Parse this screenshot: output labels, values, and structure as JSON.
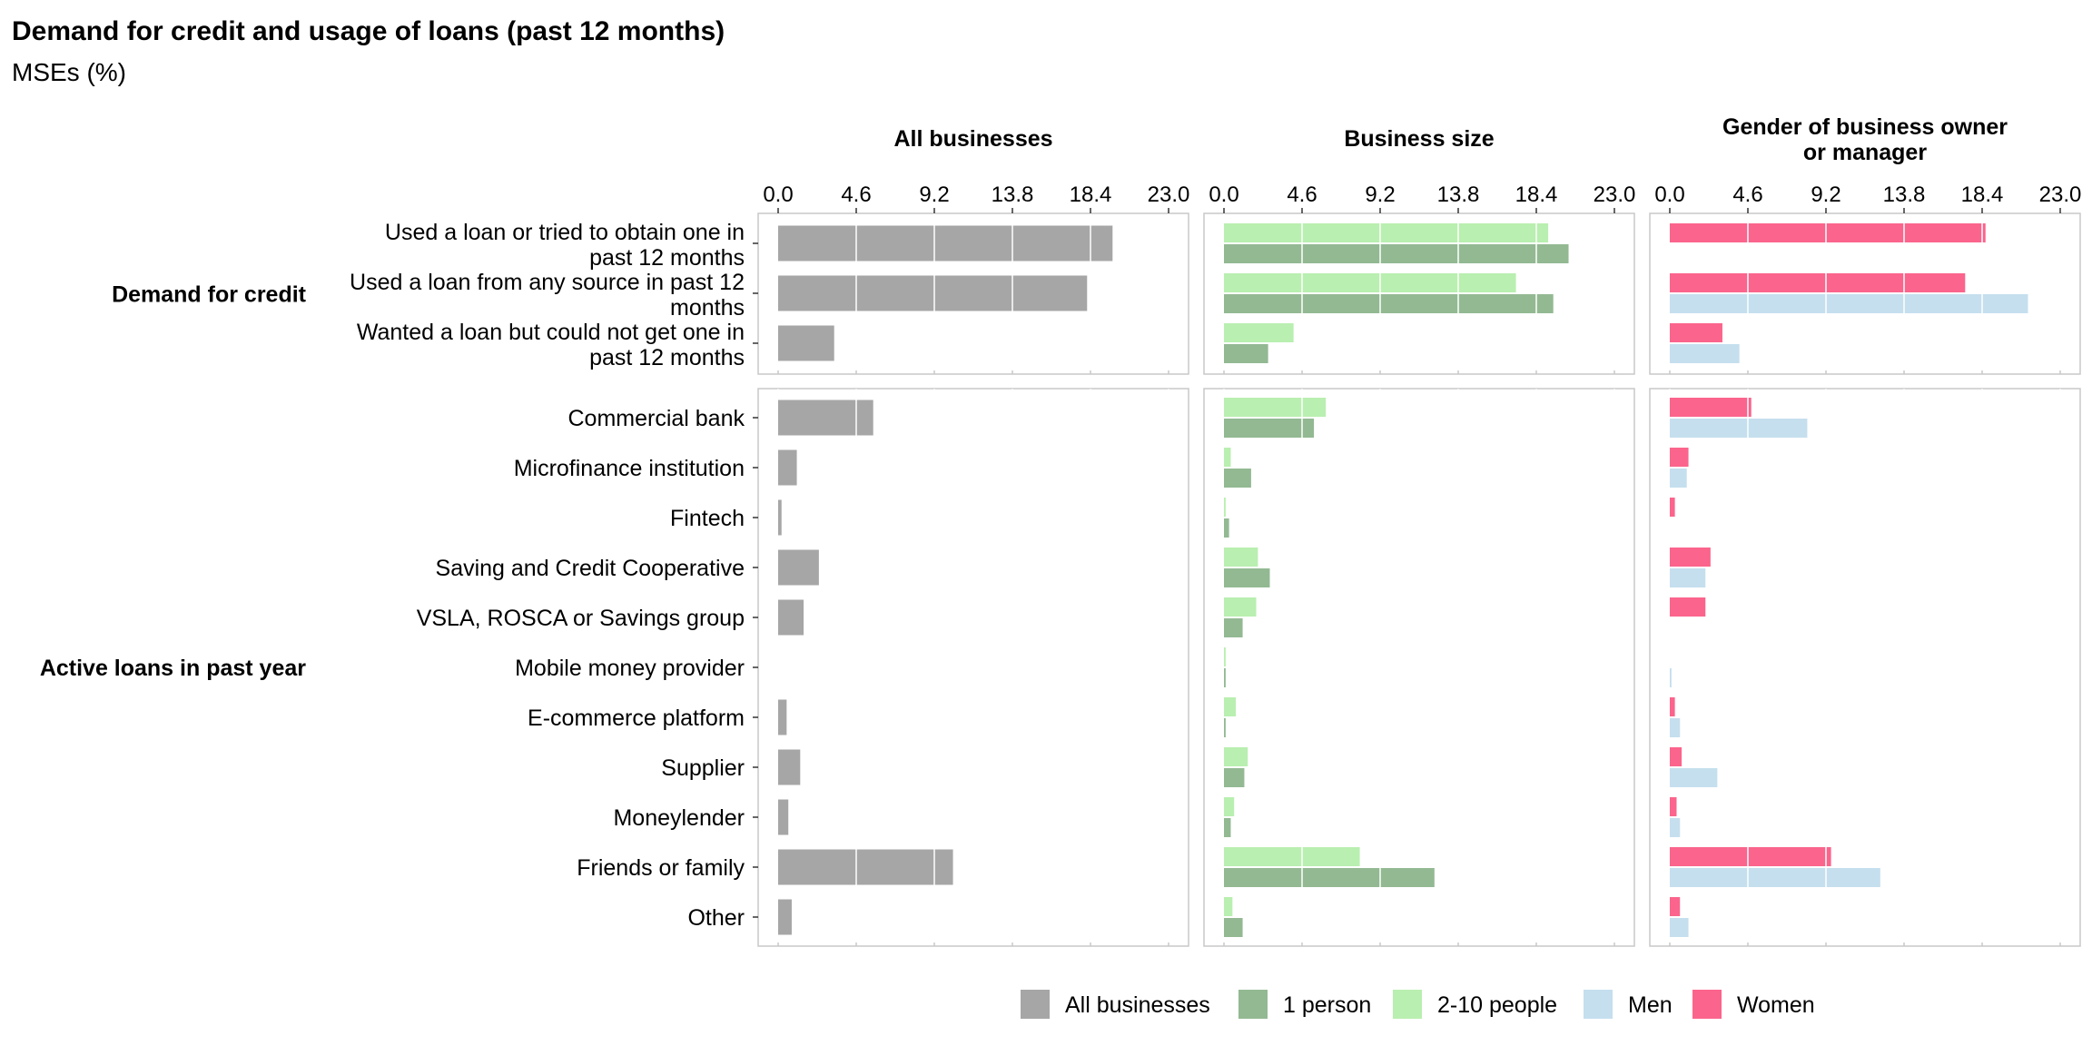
{
  "title": "Demand for credit and usage of loans (past 12 months)",
  "subtitle": "MSEs (%)",
  "chart_data": {
    "type": "bar",
    "orientation": "horizontal",
    "title": "Demand for credit and usage of loans (past 12 months)",
    "subtitle": "MSEs (%)",
    "x_ticks": [
      "0.0",
      "4.6",
      "9.2",
      "13.8",
      "18.4",
      "23.0"
    ],
    "xlim": [
      0,
      23.0
    ],
    "grid": true,
    "legend_position": "bottom",
    "panels": [
      {
        "key": "all",
        "label": "All businesses",
        "series": [
          "All businesses"
        ]
      },
      {
        "key": "size",
        "label": "Business size",
        "series": [
          "2-10 people",
          "1 person"
        ]
      },
      {
        "key": "gender",
        "label": "Gender of business owner or manager",
        "label_lines": [
          "Gender of business owner",
          "or manager"
        ],
        "series": [
          "Women",
          "Men"
        ]
      }
    ],
    "groups": [
      {
        "label": "Demand for credit",
        "categories": [
          {
            "label": "Used a loan or tried to obtain one in past 12 months",
            "label_lines": [
              "Used a loan or tried to obtain one in",
              "past 12 months"
            ]
          },
          {
            "label": "Used a loan from any source in past 12 months",
            "label_lines": [
              "Used a loan from any source in past 12",
              "months"
            ]
          },
          {
            "label": "Wanted a loan but could not get one in past 12 months",
            "label_lines": [
              "Wanted a loan but could not get one in",
              "past 12 months"
            ]
          }
        ]
      },
      {
        "label": "Active loans in past year",
        "categories": [
          {
            "label": "Commercial bank",
            "label_lines": [
              "Commercial bank"
            ]
          },
          {
            "label": "Microfinance institution",
            "label_lines": [
              "Microfinance institution"
            ]
          },
          {
            "label": "Fintech",
            "label_lines": [
              "Fintech"
            ]
          },
          {
            "label": "Saving and Credit Cooperative",
            "label_lines": [
              "Saving and Credit Cooperative"
            ]
          },
          {
            "label": "VSLA, ROSCA or Savings group",
            "label_lines": [
              "VSLA, ROSCA or Savings group"
            ]
          },
          {
            "label": "Mobile money provider",
            "label_lines": [
              "Mobile money provider"
            ]
          },
          {
            "label": "E-commerce platform",
            "label_lines": [
              "E-commerce platform"
            ]
          },
          {
            "label": "Supplier",
            "label_lines": [
              "Supplier"
            ]
          },
          {
            "label": "Moneylender",
            "label_lines": [
              "Moneylender"
            ]
          },
          {
            "label": "Friends or family",
            "label_lines": [
              "Friends or family"
            ]
          },
          {
            "label": "Other",
            "label_lines": [
              "Other"
            ]
          }
        ]
      }
    ],
    "series": [
      {
        "name": "All businesses",
        "color": "#a6a6a6",
        "values": [
          19.7,
          18.2,
          3.3,
          5.6,
          1.1,
          0.2,
          2.4,
          1.5,
          0.0,
          0.5,
          1.3,
          0.6,
          10.3,
          0.8
        ]
      },
      {
        "name": "2-10 people",
        "color": "#b9efb0",
        "values": [
          19.1,
          17.2,
          4.1,
          6.0,
          0.4,
          0.1,
          2.0,
          1.9,
          0.1,
          0.7,
          1.4,
          0.6,
          8.0,
          0.5
        ]
      },
      {
        "name": "1 person",
        "color": "#93b993",
        "values": [
          20.3,
          19.4,
          2.6,
          5.3,
          1.6,
          0.3,
          2.7,
          1.1,
          0.1,
          0.1,
          1.2,
          0.4,
          12.4,
          1.1
        ]
      },
      {
        "name": "Women",
        "color": "#fb648c",
        "values": [
          18.6,
          17.4,
          3.1,
          4.8,
          1.1,
          0.3,
          2.4,
          2.1,
          0.0,
          0.3,
          0.7,
          0.4,
          9.5,
          0.6
        ]
      },
      {
        "name": "Men",
        "color": "#c5dfee",
        "values": [
          null,
          21.1,
          4.1,
          8.1,
          1.0,
          0.0,
          2.1,
          0.0,
          0.1,
          0.6,
          2.8,
          0.6,
          12.4,
          1.1
        ]
      }
    ],
    "legend": [
      {
        "name": "All businesses",
        "color": "#a6a6a6"
      },
      {
        "name": "1 person",
        "color": "#93b993"
      },
      {
        "name": "2-10 people",
        "color": "#b9efb0"
      },
      {
        "name": "Men",
        "color": "#c5dfee"
      },
      {
        "name": "Women",
        "color": "#fb648c"
      }
    ]
  }
}
